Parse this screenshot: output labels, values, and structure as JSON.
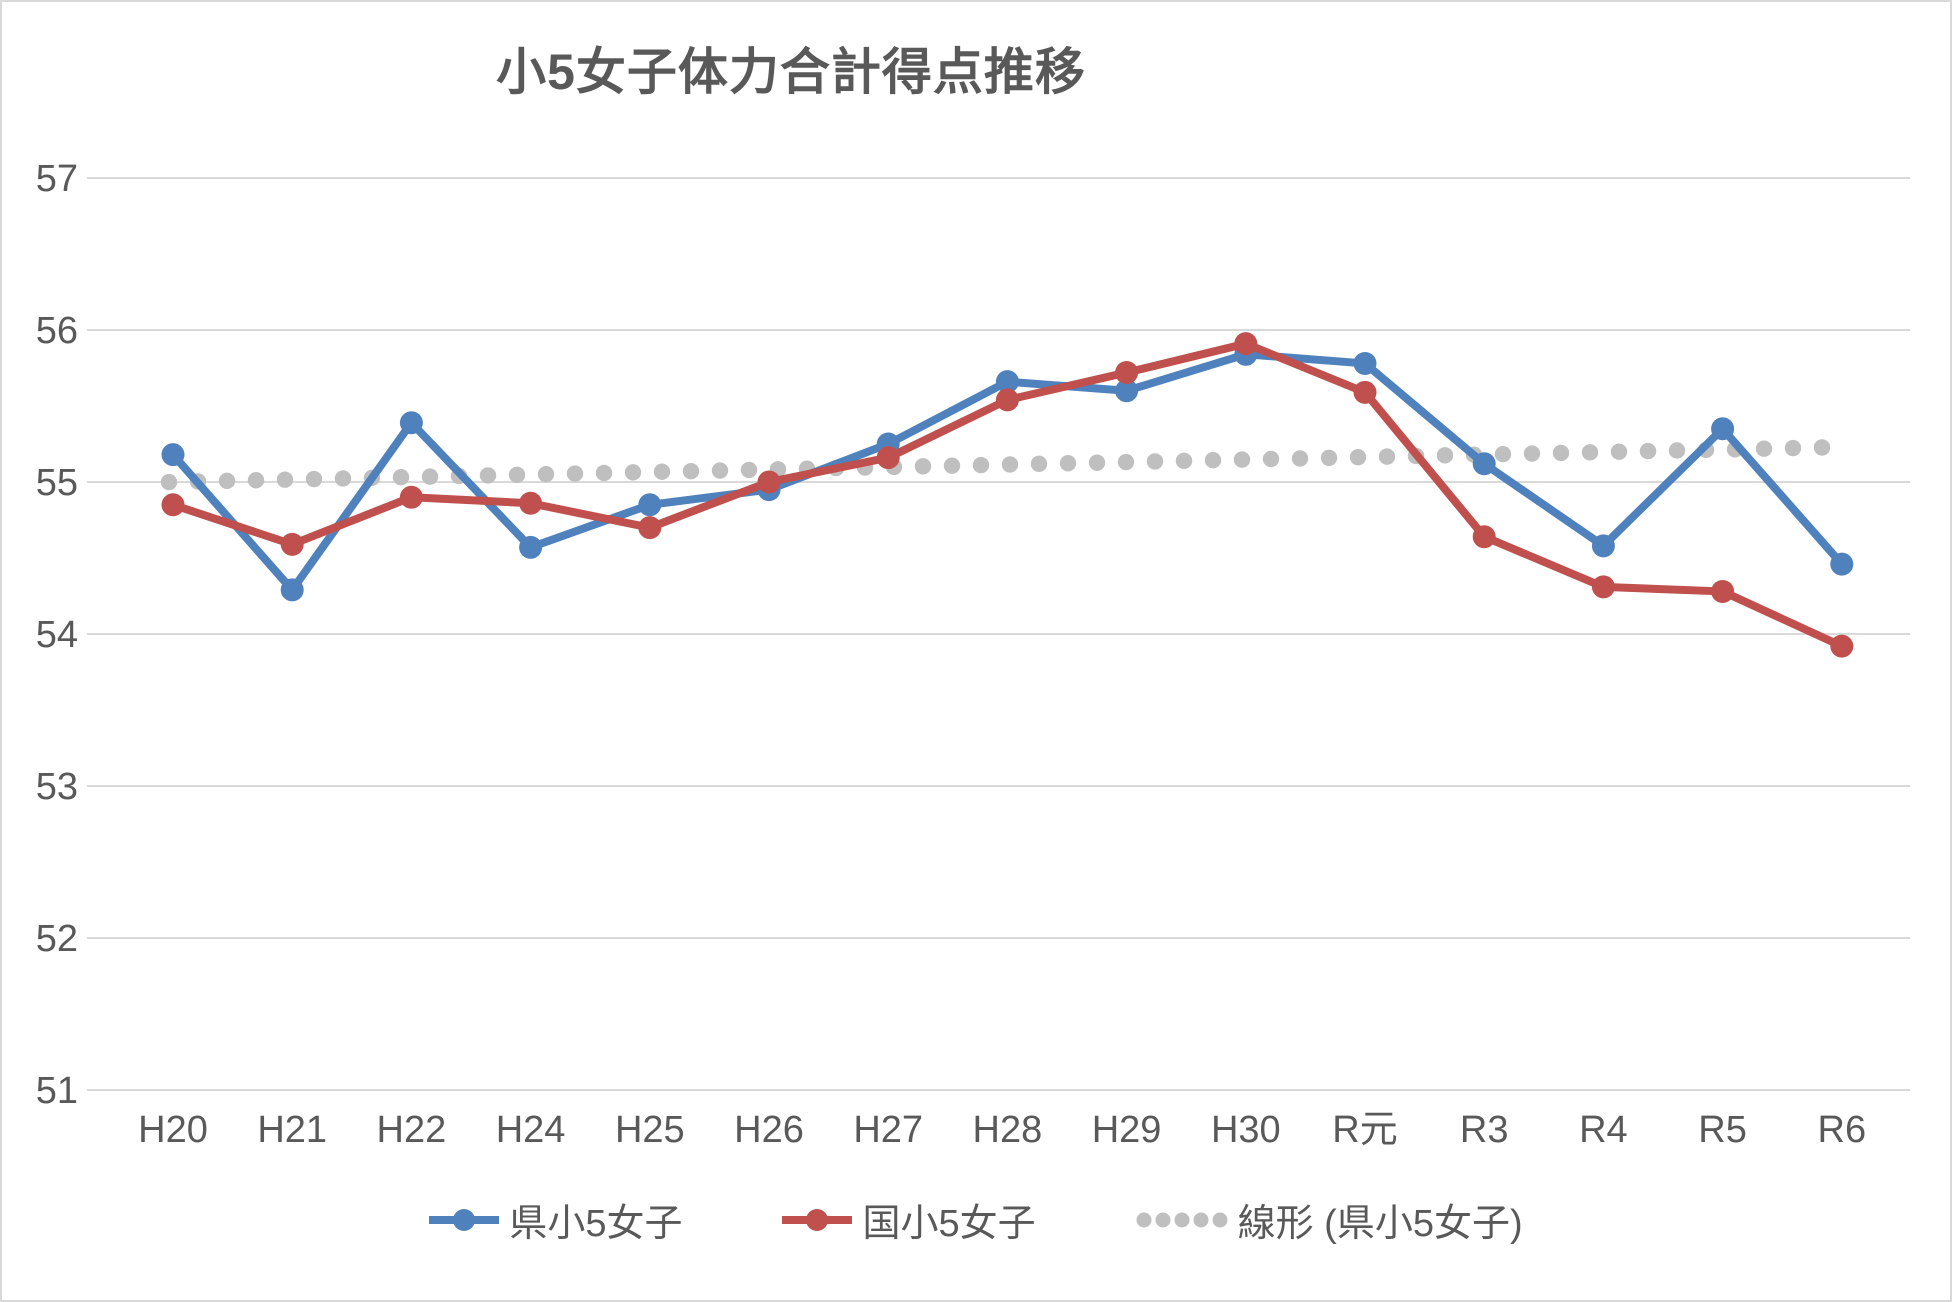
{
  "page": {
    "background": "#ffffff",
    "border_color": "#d9d9d9"
  },
  "chart_data": {
    "type": "line",
    "title": "小5女子体力合計得点推移",
    "categories": [
      "H20",
      "H21",
      "H22",
      "H24",
      "H25",
      "H26",
      "H27",
      "H28",
      "H29",
      "H30",
      "R元",
      "R3",
      "R4",
      "R5",
      "R6"
    ],
    "series": [
      {
        "name": "県小5女子",
        "color": "#4F81BD",
        "values": [
          55.18,
          54.29,
          55.39,
          54.57,
          54.85,
          54.95,
          55.25,
          55.66,
          55.6,
          55.84,
          55.78,
          55.12,
          54.58,
          55.35,
          54.46
        ]
      },
      {
        "name": "国小5女子",
        "color": "#C0504D",
        "values": [
          54.85,
          54.59,
          54.9,
          54.86,
          54.7,
          55.0,
          55.16,
          55.54,
          55.72,
          55.91,
          55.59,
          54.64,
          54.31,
          54.28,
          53.92
        ]
      }
    ],
    "trendline": {
      "name": "線形 (県小5女子)",
      "color": "#BFBFBF",
      "start": 55.0,
      "end": 55.23
    },
    "yticks": [
      57,
      56,
      55,
      54,
      53,
      52,
      51
    ],
    "ylim": [
      51,
      57
    ],
    "grid": "horizontal",
    "grid_color": "#D9D9D9",
    "text_color": "#595959",
    "legend_position": "bottom"
  }
}
